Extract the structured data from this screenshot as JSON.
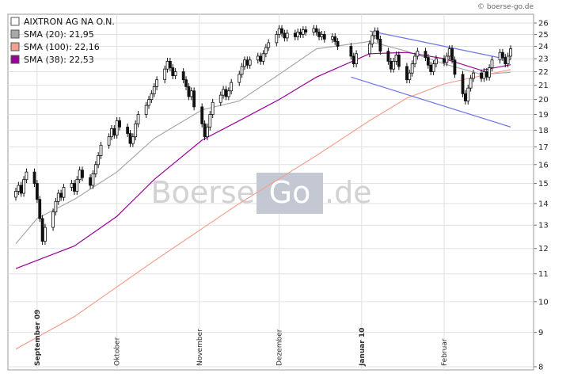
{
  "credit": "© boerse-go.de",
  "watermark": {
    "left": "Boerse",
    "box": "Go",
    "right": ".de"
  },
  "legend": [
    {
      "label": "AIXTRON AG NA O.N.",
      "color": "#ffffff"
    },
    {
      "label": "SMA (20): 21,95",
      "color": "#a8a8a8"
    },
    {
      "label": "SMA (100): 22,16",
      "color": "#f4a090"
    },
    {
      "label": "SMA (38): 22,53",
      "color": "#990099"
    }
  ],
  "chart_data": {
    "type": "candlestick",
    "title": "AIXTRON AG NA O.N.",
    "y_scale": "log",
    "ylim": [
      8,
      26
    ],
    "y_ticks": [
      8,
      9,
      10,
      11,
      12,
      13,
      14,
      15,
      16,
      17,
      18,
      19,
      20,
      21,
      22,
      23,
      24,
      25,
      26
    ],
    "grid": true,
    "x_start": "2009-08-24",
    "x_end": "2010-02-26",
    "month_labels": [
      {
        "date": "2009-09-01",
        "label": "September 09",
        "bold": true
      },
      {
        "date": "2009-10-01",
        "label": "Oktober",
        "bold": false
      },
      {
        "date": "2009-11-01",
        "label": "November",
        "bold": false
      },
      {
        "date": "2009-12-01",
        "label": "Dezember",
        "bold": false
      },
      {
        "date": "2010-01-01",
        "label": "Januar 10",
        "bold": true
      },
      {
        "date": "2010-02-01",
        "label": "Februar",
        "bold": false
      }
    ],
    "candles": [
      {
        "date": "2009-08-24",
        "close": 14.6
      },
      {
        "date": "2009-08-25",
        "close": 14.9
      },
      {
        "date": "2009-08-26",
        "close": 14.5
      },
      {
        "date": "2009-08-27",
        "close": 15.2
      },
      {
        "date": "2009-08-28",
        "close": 15.6
      },
      {
        "date": "2009-08-31",
        "close": 15.0
      },
      {
        "date": "2009-09-01",
        "close": 14.2
      },
      {
        "date": "2009-09-02",
        "close": 13.3
      },
      {
        "date": "2009-09-03",
        "close": 12.3
      },
      {
        "date": "2009-09-04",
        "close": 12.9
      },
      {
        "date": "2009-09-07",
        "close": 13.6
      },
      {
        "date": "2009-09-08",
        "close": 14.1
      },
      {
        "date": "2009-09-09",
        "close": 14.5
      },
      {
        "date": "2009-09-10",
        "close": 14.3
      },
      {
        "date": "2009-09-11",
        "close": 14.8
      },
      {
        "date": "2009-09-14",
        "close": 15.0
      },
      {
        "date": "2009-09-15",
        "close": 14.6
      },
      {
        "date": "2009-09-16",
        "close": 15.2
      },
      {
        "date": "2009-09-17",
        "close": 15.7
      },
      {
        "date": "2009-09-18",
        "close": 15.3
      },
      {
        "date": "2009-09-21",
        "close": 14.9
      },
      {
        "date": "2009-09-22",
        "close": 15.5
      },
      {
        "date": "2009-09-23",
        "close": 16.0
      },
      {
        "date": "2009-09-24",
        "close": 16.5
      },
      {
        "date": "2009-09-25",
        "close": 17.1
      },
      {
        "date": "2009-09-28",
        "close": 17.6
      },
      {
        "date": "2009-09-29",
        "close": 18.1
      },
      {
        "date": "2009-09-30",
        "close": 17.7
      },
      {
        "date": "2009-10-01",
        "close": 18.6
      },
      {
        "date": "2009-10-02",
        "close": 18.2
      },
      {
        "date": "2009-10-05",
        "close": 17.8
      },
      {
        "date": "2009-10-06",
        "close": 17.2
      },
      {
        "date": "2009-10-07",
        "close": 17.6
      },
      {
        "date": "2009-10-08",
        "close": 18.4
      },
      {
        "date": "2009-10-09",
        "close": 19.0
      },
      {
        "date": "2009-10-12",
        "close": 19.6
      },
      {
        "date": "2009-10-13",
        "close": 20.0
      },
      {
        "date": "2009-10-14",
        "close": 20.4
      },
      {
        "date": "2009-10-15",
        "close": 20.9
      },
      {
        "date": "2009-10-16",
        "close": 21.4
      },
      {
        "date": "2009-10-19",
        "close": 22.2
      },
      {
        "date": "2009-10-20",
        "close": 22.8
      },
      {
        "date": "2009-10-21",
        "close": 22.3
      },
      {
        "date": "2009-10-22",
        "close": 21.7
      },
      {
        "date": "2009-10-23",
        "close": 22.0
      },
      {
        "date": "2009-10-26",
        "close": 21.4
      },
      {
        "date": "2009-10-27",
        "close": 20.9
      },
      {
        "date": "2009-10-28",
        "close": 20.2
      },
      {
        "date": "2009-10-29",
        "close": 20.6
      },
      {
        "date": "2009-10-30",
        "close": 19.5
      },
      {
        "date": "2009-11-02",
        "close": 18.4
      },
      {
        "date": "2009-11-03",
        "close": 17.6
      },
      {
        "date": "2009-11-04",
        "close": 18.2
      },
      {
        "date": "2009-11-05",
        "close": 19.0
      },
      {
        "date": "2009-11-06",
        "close": 19.8
      },
      {
        "date": "2009-11-09",
        "close": 20.3
      },
      {
        "date": "2009-11-10",
        "close": 20.7
      },
      {
        "date": "2009-11-11",
        "close": 20.2
      },
      {
        "date": "2009-11-12",
        "close": 20.6
      },
      {
        "date": "2009-11-13",
        "close": 21.2
      },
      {
        "date": "2009-11-16",
        "close": 21.8
      },
      {
        "date": "2009-11-17",
        "close": 22.4
      },
      {
        "date": "2009-11-18",
        "close": 22.9
      },
      {
        "date": "2009-11-19",
        "close": 22.5
      },
      {
        "date": "2009-11-20",
        "close": 22.9
      },
      {
        "date": "2009-11-23",
        "close": 23.2
      },
      {
        "date": "2009-11-24",
        "close": 22.8
      },
      {
        "date": "2009-11-25",
        "close": 23.4
      },
      {
        "date": "2009-11-26",
        "close": 23.9
      },
      {
        "date": "2009-11-27",
        "close": 24.3
      },
      {
        "date": "2009-11-30",
        "close": 25.0
      },
      {
        "date": "2009-12-01",
        "close": 25.5
      },
      {
        "date": "2009-12-02",
        "close": 25.1
      },
      {
        "date": "2009-12-03",
        "close": 24.7
      },
      {
        "date": "2009-12-04",
        "close": 25.1
      },
      {
        "date": "2009-12-07",
        "close": 24.8
      },
      {
        "date": "2009-12-08",
        "close": 25.2
      },
      {
        "date": "2009-12-09",
        "close": 25.0
      },
      {
        "date": "2009-12-10",
        "close": 25.4
      },
      {
        "date": "2009-12-11",
        "close": 25.2
      },
      {
        "date": "2009-12-14",
        "close": 25.5
      },
      {
        "date": "2009-12-15",
        "close": 25.2
      },
      {
        "date": "2009-12-16",
        "close": 24.8
      },
      {
        "date": "2009-12-17",
        "close": 25.0
      },
      {
        "date": "2009-12-18",
        "close": 24.6
      },
      {
        "date": "2009-12-21",
        "close": 24.8
      },
      {
        "date": "2009-12-22",
        "close": 24.4
      },
      {
        "date": "2009-12-23",
        "close": 24.0
      },
      {
        "date": "2009-12-28",
        "close": 23.2
      },
      {
        "date": "2009-12-29",
        "close": 22.6
      },
      {
        "date": "2009-12-30",
        "close": 23.4
      },
      {
        "date": "2010-01-04",
        "close": 24.2
      },
      {
        "date": "2010-01-05",
        "close": 24.9
      },
      {
        "date": "2010-01-06",
        "close": 25.3
      },
      {
        "date": "2010-01-07",
        "close": 24.6
      },
      {
        "date": "2010-01-08",
        "close": 23.6
      },
      {
        "date": "2010-01-11",
        "close": 22.8
      },
      {
        "date": "2010-01-12",
        "close": 22.2
      },
      {
        "date": "2010-01-13",
        "close": 22.8
      },
      {
        "date": "2010-01-14",
        "close": 23.3
      },
      {
        "date": "2010-01-15",
        "close": 22.4
      },
      {
        "date": "2010-01-18",
        "close": 21.4
      },
      {
        "date": "2010-01-19",
        "close": 21.9
      },
      {
        "date": "2010-01-20",
        "close": 22.6
      },
      {
        "date": "2010-01-21",
        "close": 23.2
      },
      {
        "date": "2010-01-22",
        "close": 23.6
      },
      {
        "date": "2010-01-25",
        "close": 23.1
      },
      {
        "date": "2010-01-26",
        "close": 22.5
      },
      {
        "date": "2010-01-27",
        "close": 22.0
      },
      {
        "date": "2010-01-28",
        "close": 22.6
      },
      {
        "date": "2010-01-29",
        "close": 23.0
      },
      {
        "date": "2010-02-01",
        "close": 22.7
      },
      {
        "date": "2010-02-02",
        "close": 23.2
      },
      {
        "date": "2010-02-03",
        "close": 23.8
      },
      {
        "date": "2010-02-04",
        "close": 22.9
      },
      {
        "date": "2010-02-05",
        "close": 21.8
      },
      {
        "date": "2010-02-08",
        "close": 20.4
      },
      {
        "date": "2010-02-09",
        "close": 19.9
      },
      {
        "date": "2010-02-10",
        "close": 20.8
      },
      {
        "date": "2010-02-11",
        "close": 21.5
      },
      {
        "date": "2010-02-12",
        "close": 21.9
      },
      {
        "date": "2010-02-15",
        "close": 21.5
      },
      {
        "date": "2010-02-16",
        "close": 22.0
      },
      {
        "date": "2010-02-17",
        "close": 21.6
      },
      {
        "date": "2010-02-18",
        "close": 22.3
      },
      {
        "date": "2010-02-19",
        "close": 22.9
      },
      {
        "date": "2010-02-22",
        "close": 23.5
      },
      {
        "date": "2010-02-23",
        "close": 23.1
      },
      {
        "date": "2010-02-24",
        "close": 22.6
      },
      {
        "date": "2010-02-25",
        "close": 23.2
      },
      {
        "date": "2010-02-26",
        "close": 23.8
      }
    ],
    "trendlines": [
      {
        "color": "#6a72e8",
        "points": [
          {
            "date": "2010-01-04",
            "value": 25.3
          },
          {
            "date": "2010-02-26",
            "value": 22.9
          }
        ]
      },
      {
        "color": "#6a72e8",
        "points": [
          {
            "date": "2009-12-28",
            "value": 21.6
          },
          {
            "date": "2010-02-26",
            "value": 18.2
          }
        ]
      }
    ],
    "series": [
      {
        "name": "SMA (20): 21,95",
        "color": "#a8a8a8",
        "points": [
          {
            "date": "2009-08-24",
            "value": 12.2
          },
          {
            "date": "2009-09-01",
            "value": 13.3
          },
          {
            "date": "2009-09-15",
            "value": 14.2
          },
          {
            "date": "2009-10-01",
            "value": 15.6
          },
          {
            "date": "2009-10-15",
            "value": 17.5
          },
          {
            "date": "2009-11-02",
            "value": 19.3
          },
          {
            "date": "2009-11-16",
            "value": 19.9
          },
          {
            "date": "2009-12-01",
            "value": 21.8
          },
          {
            "date": "2009-12-15",
            "value": 23.8
          },
          {
            "date": "2010-01-04",
            "value": 24.4
          },
          {
            "date": "2010-01-18",
            "value": 23.6
          },
          {
            "date": "2010-02-01",
            "value": 22.6
          },
          {
            "date": "2010-02-15",
            "value": 21.8
          },
          {
            "date": "2010-02-26",
            "value": 21.95
          }
        ]
      },
      {
        "name": "SMA (100): 22,16",
        "color": "#f4a090",
        "points": [
          {
            "date": "2009-08-24",
            "value": 8.5
          },
          {
            "date": "2009-09-15",
            "value": 9.5
          },
          {
            "date": "2009-10-15",
            "value": 11.5
          },
          {
            "date": "2009-11-16",
            "value": 14.0
          },
          {
            "date": "2009-12-15",
            "value": 16.5
          },
          {
            "date": "2010-01-04",
            "value": 18.6
          },
          {
            "date": "2010-01-18",
            "value": 20.1
          },
          {
            "date": "2010-02-01",
            "value": 21.1
          },
          {
            "date": "2010-02-15",
            "value": 21.7
          },
          {
            "date": "2010-02-26",
            "value": 22.16
          }
        ]
      },
      {
        "name": "SMA (38): 22,53",
        "color": "#990099",
        "points": [
          {
            "date": "2009-08-24",
            "value": 11.2
          },
          {
            "date": "2009-09-15",
            "value": 12.1
          },
          {
            "date": "2009-10-01",
            "value": 13.4
          },
          {
            "date": "2009-10-15",
            "value": 15.2
          },
          {
            "date": "2009-11-02",
            "value": 17.4
          },
          {
            "date": "2009-11-16",
            "value": 18.6
          },
          {
            "date": "2009-12-01",
            "value": 20.0
          },
          {
            "date": "2009-12-15",
            "value": 21.6
          },
          {
            "date": "2010-01-04",
            "value": 23.4
          },
          {
            "date": "2010-01-18",
            "value": 23.5
          },
          {
            "date": "2010-02-01",
            "value": 23.0
          },
          {
            "date": "2010-02-15",
            "value": 22.1
          },
          {
            "date": "2010-02-26",
            "value": 22.53
          }
        ]
      }
    ]
  }
}
